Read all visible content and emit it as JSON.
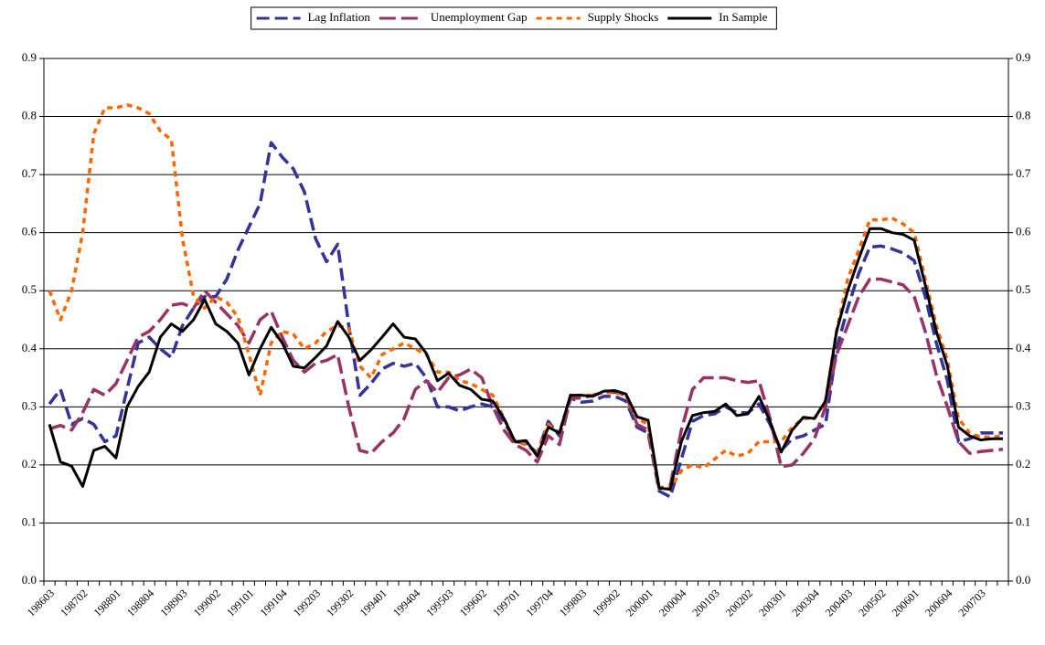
{
  "chart_data": {
    "type": "line",
    "categories": [
      "198603",
      null,
      null,
      "198702",
      null,
      null,
      "198801",
      null,
      null,
      "198804",
      null,
      null,
      "198903",
      null,
      null,
      "199002",
      null,
      null,
      "199101",
      null,
      null,
      "199104",
      null,
      null,
      "199203",
      null,
      null,
      "199302",
      null,
      null,
      "199401",
      null,
      null,
      "199404",
      null,
      null,
      "199503",
      null,
      null,
      "199602",
      null,
      null,
      "199701",
      null,
      null,
      "199704",
      null,
      null,
      "199803",
      null,
      null,
      "199902",
      null,
      null,
      "200001",
      null,
      null,
      "200004",
      null,
      null,
      "200103",
      null,
      null,
      "200202",
      null,
      null,
      "200301",
      null,
      null,
      "200304",
      null,
      null,
      "200403",
      null,
      null,
      "200502",
      null,
      null,
      "200601",
      null,
      null,
      "200604",
      null,
      null,
      "200703",
      null,
      null
    ],
    "series": [
      {
        "name": "Lag Inflation",
        "color": "#333399",
        "style": "dashed",
        "values": [
          0.305,
          0.33,
          0.27,
          0.28,
          0.27,
          0.24,
          0.25,
          0.33,
          0.41,
          0.42,
          0.4,
          0.385,
          0.44,
          0.47,
          0.49,
          0.49,
          0.52,
          0.57,
          0.61,
          0.65,
          0.755,
          0.73,
          0.71,
          0.67,
          0.59,
          0.55,
          0.58,
          0.44,
          0.32,
          0.34,
          0.365,
          0.375,
          0.37,
          0.375,
          0.35,
          0.3,
          0.3,
          0.293,
          0.3,
          0.305,
          0.3,
          0.275,
          0.24,
          0.238,
          0.22,
          0.275,
          0.25,
          0.315,
          0.308,
          0.31,
          0.318,
          0.318,
          0.31,
          0.265,
          0.255,
          0.155,
          0.145,
          0.21,
          0.275,
          0.285,
          0.288,
          0.3,
          0.29,
          0.29,
          0.305,
          0.27,
          0.225,
          0.245,
          0.25,
          0.26,
          0.27,
          0.4,
          0.47,
          0.53,
          0.575,
          0.577,
          0.572,
          0.565,
          0.552,
          0.49,
          0.41,
          0.345,
          0.24,
          0.245,
          0.255,
          0.255,
          0.255
        ]
      },
      {
        "name": "Unemployment Gap",
        "color": "#993366",
        "style": "longdash",
        "values": [
          0.262,
          0.268,
          0.26,
          0.29,
          0.33,
          0.32,
          0.34,
          0.38,
          0.42,
          0.43,
          0.45,
          0.475,
          0.478,
          0.47,
          0.5,
          0.48,
          0.46,
          0.44,
          0.41,
          0.45,
          0.465,
          0.42,
          0.38,
          0.36,
          0.375,
          0.38,
          0.39,
          0.3,
          0.225,
          0.22,
          0.24,
          0.255,
          0.28,
          0.33,
          0.345,
          0.325,
          0.35,
          0.355,
          0.365,
          0.35,
          0.3,
          0.26,
          0.235,
          0.225,
          0.205,
          0.25,
          0.235,
          0.315,
          0.315,
          0.32,
          0.325,
          0.325,
          0.32,
          0.27,
          0.26,
          0.16,
          0.165,
          0.26,
          0.33,
          0.35,
          0.35,
          0.35,
          0.345,
          0.342,
          0.345,
          0.28,
          0.197,
          0.2,
          0.22,
          0.245,
          0.3,
          0.39,
          0.44,
          0.49,
          0.52,
          0.52,
          0.515,
          0.51,
          0.49,
          0.43,
          0.355,
          0.3,
          0.24,
          0.22,
          0.223,
          0.225,
          0.227
        ]
      },
      {
        "name": "Supply Shocks",
        "color": "#ff6600",
        "style": "dotted",
        "values": [
          0.5,
          0.45,
          0.5,
          0.6,
          0.77,
          0.815,
          0.815,
          0.82,
          0.815,
          0.805,
          0.775,
          0.76,
          0.59,
          0.49,
          0.47,
          0.49,
          0.48,
          0.455,
          0.39,
          0.32,
          0.41,
          0.43,
          0.425,
          0.4,
          0.41,
          0.43,
          0.44,
          0.435,
          0.37,
          0.35,
          0.39,
          0.4,
          0.41,
          0.4,
          0.39,
          0.36,
          0.36,
          0.345,
          0.34,
          0.33,
          0.32,
          0.28,
          0.24,
          0.235,
          0.22,
          0.27,
          0.255,
          0.32,
          0.32,
          0.32,
          0.325,
          0.325,
          0.32,
          0.28,
          0.27,
          0.16,
          0.16,
          0.19,
          0.2,
          0.195,
          0.21,
          0.225,
          0.215,
          0.22,
          0.24,
          0.24,
          0.24,
          0.265,
          0.28,
          0.28,
          0.31,
          0.43,
          0.52,
          0.57,
          0.622,
          0.622,
          0.625,
          0.615,
          0.6,
          0.52,
          0.44,
          0.38,
          0.28,
          0.255,
          0.248,
          0.248,
          0.25
        ]
      },
      {
        "name": "In Sample",
        "color": "#000000",
        "style": "solid",
        "values": [
          0.27,
          0.205,
          0.198,
          0.163,
          0.225,
          0.232,
          0.212,
          0.3,
          0.335,
          0.36,
          0.42,
          0.443,
          0.43,
          0.45,
          0.485,
          0.443,
          0.43,
          0.41,
          0.355,
          0.4,
          0.437,
          0.41,
          0.37,
          0.367,
          0.385,
          0.405,
          0.447,
          0.42,
          0.38,
          0.398,
          0.42,
          0.443,
          0.42,
          0.417,
          0.392,
          0.345,
          0.358,
          0.337,
          0.33,
          0.313,
          0.31,
          0.28,
          0.24,
          0.242,
          0.215,
          0.265,
          0.255,
          0.32,
          0.32,
          0.318,
          0.327,
          0.328,
          0.322,
          0.283,
          0.277,
          0.16,
          0.158,
          0.24,
          0.285,
          0.29,
          0.292,
          0.305,
          0.285,
          0.288,
          0.318,
          0.275,
          0.222,
          0.26,
          0.282,
          0.28,
          0.31,
          0.43,
          0.5,
          0.555,
          0.607,
          0.607,
          0.6,
          0.597,
          0.587,
          0.51,
          0.43,
          0.37,
          0.265,
          0.25,
          0.243,
          0.245,
          0.245
        ]
      }
    ],
    "ylim": [
      0,
      0.9
    ],
    "yticks": [
      {
        "value": 0,
        "label": "0.0"
      },
      0.1,
      0.2,
      0.3,
      0.4,
      0.5,
      0.6,
      0.7,
      0.8,
      0.9
    ],
    "y2lim": [
      0,
      0.9
    ],
    "y2ticks": [
      {
        "value": 0,
        "label": "0.0"
      },
      0.1,
      0.2,
      0.3,
      0.4,
      0.5,
      0.6,
      0.7,
      0.8,
      0.9
    ],
    "grid": true,
    "legend": "top"
  }
}
